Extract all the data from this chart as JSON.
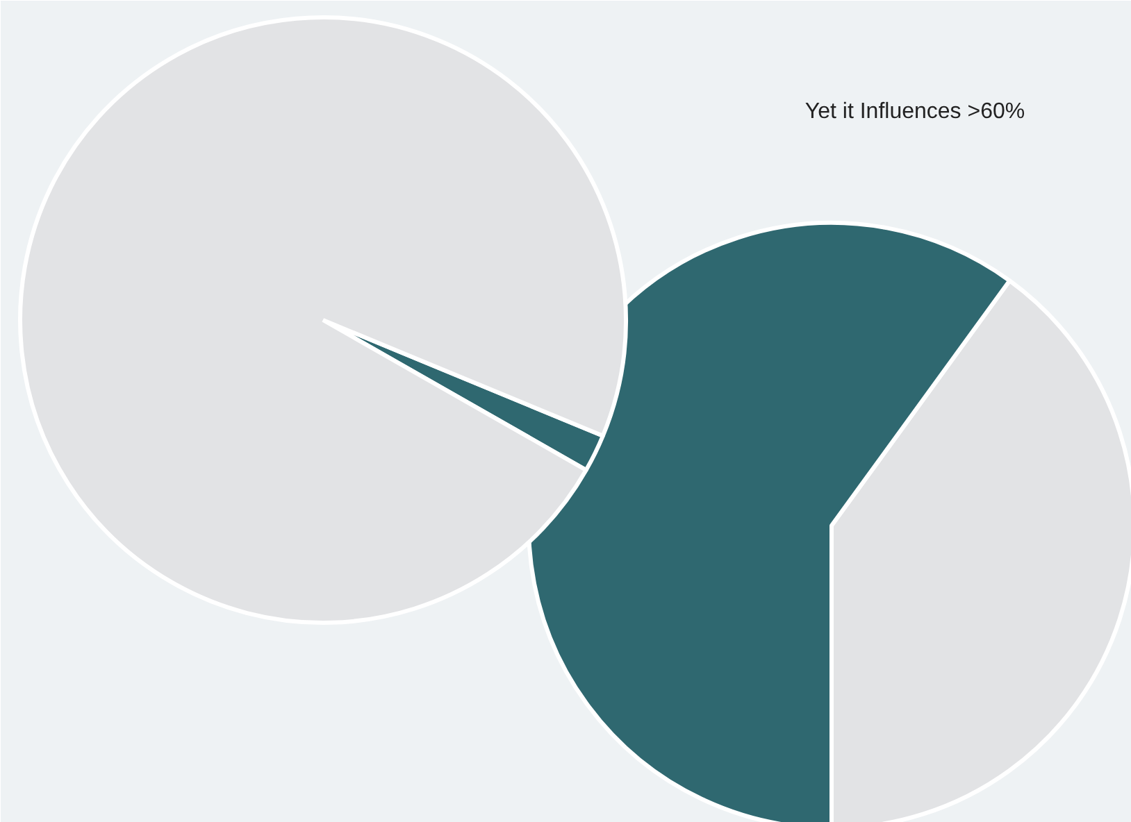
{
  "chart_data": [
    {
      "type": "pie",
      "categories": [
        null,
        null
      ],
      "values": [
        2,
        98
      ],
      "colors": [
        "#2f6870",
        "#e2e3e5"
      ]
    },
    {
      "type": "pie",
      "title": "Yet it Influences >60%",
      "categories": [
        null,
        null
      ],
      "values": [
        40,
        60
      ],
      "colors": [
        "#e2e3e5",
        "#2f6870"
      ]
    }
  ]
}
